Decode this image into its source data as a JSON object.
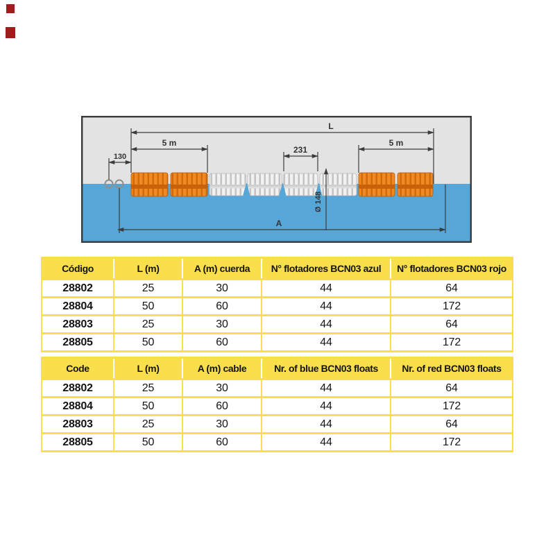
{
  "decorations": {
    "bullet_color": "#a11d1d"
  },
  "diagram": {
    "colors": {
      "sky": "#e3e3e3",
      "water": "#56a7d8",
      "border": "#3a3a3a",
      "orange_float": "#ee8a21",
      "white_float": "#f1f1f1",
      "dimension_line": "#3c3c3c"
    },
    "labels": {
      "total_length": "L",
      "left_section": "5 m",
      "right_section": "5 m",
      "center_float_length": "231",
      "end_offset": "130",
      "float_diameter": "Ø 148",
      "rope_length": "A"
    }
  },
  "tables": [
    {
      "language": "es",
      "headers": [
        "Código",
        "L (m)",
        "A (m) cuerda",
        "N° flotadores BCN03 azul",
        "N° flotadores BCN03 rojo"
      ],
      "rows": [
        [
          "28802",
          "25",
          "30",
          "44",
          "64"
        ],
        [
          "28804",
          "50",
          "60",
          "44",
          "172"
        ],
        [
          "28803",
          "25",
          "30",
          "44",
          "64"
        ],
        [
          "28805",
          "50",
          "60",
          "44",
          "172"
        ]
      ]
    },
    {
      "language": "en",
      "headers": [
        "Code",
        "L (m)",
        "A (m) cable",
        "Nr. of blue BCN03 floats",
        "Nr. of red BCN03 floats"
      ],
      "rows": [
        [
          "28802",
          "25",
          "30",
          "44",
          "64"
        ],
        [
          "28804",
          "50",
          "60",
          "44",
          "172"
        ],
        [
          "28803",
          "25",
          "30",
          "44",
          "64"
        ],
        [
          "28805",
          "50",
          "60",
          "44",
          "172"
        ]
      ]
    }
  ]
}
